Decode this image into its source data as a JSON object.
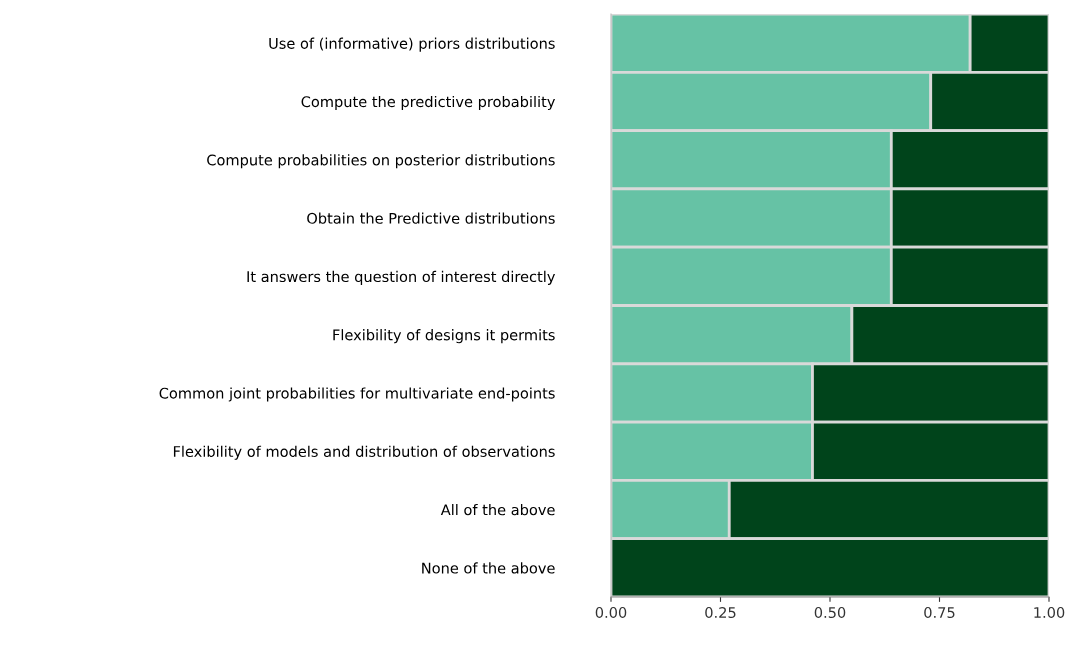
{
  "chart_data": {
    "type": "bar",
    "orientation": "horizontal",
    "stacked": true,
    "categories": [
      "Use of (informative) priors distributions",
      "Compute the predictive probability",
      "Compute probabilities on posterior distributions",
      "Obtain the Predictive distributions",
      "It answers the question of interest directly",
      "Flexibility of designs it permits",
      "Common joint probabilities for multivariate end-points",
      "Flexibility of models and distribution of observations",
      "All of the above",
      "None of the above"
    ],
    "series": [
      {
        "color": "#66c2a5",
        "values": [
          0.82,
          0.73,
          0.64,
          0.64,
          0.64,
          0.55,
          0.46,
          0.46,
          0.27,
          0
        ]
      },
      {
        "color": "#00441b",
        "values": [
          0.18,
          0.27,
          0.36,
          0.36,
          0.36,
          0.45,
          0.54,
          0.54,
          0.73,
          1
        ]
      }
    ],
    "xlim": [
      0,
      1
    ],
    "xticks": [
      {
        "value": 0,
        "label": "0.00"
      },
      {
        "value": 0.25,
        "label": "0.25"
      },
      {
        "value": 0.5,
        "label": "0.50"
      },
      {
        "value": 0.75,
        "label": "0.75"
      },
      {
        "value": 1,
        "label": "1.00"
      }
    ],
    "grid": false
  }
}
